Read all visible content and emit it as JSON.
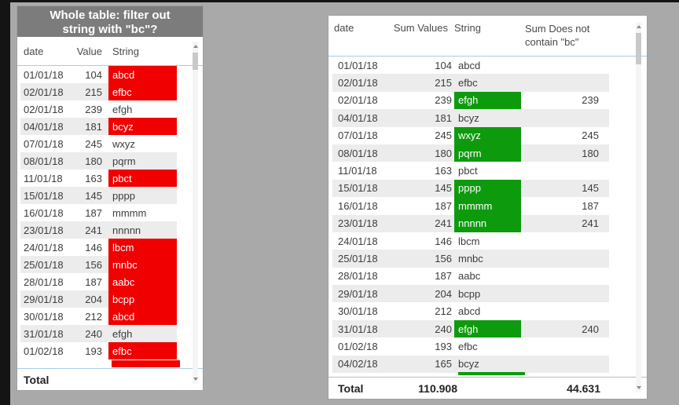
{
  "colors": {
    "page_bg": "#a9a9a9",
    "title_bg": "#7c7c7c",
    "highlight_red": "#f00000",
    "highlight_green": "#0d9b0d",
    "alt_row": "#ececec",
    "header_underline": "#a5cdec"
  },
  "left_table": {
    "title_line1": "Whole table: filter out",
    "title_line2": "string with \"bc\"?",
    "columns": {
      "date": "date",
      "value": "Value",
      "string": "String"
    },
    "rows": [
      {
        "date": "01/01/18",
        "value": "104",
        "string": "abcd",
        "highlight": true
      },
      {
        "date": "02/01/18",
        "value": "215",
        "string": "efbc",
        "highlight": true
      },
      {
        "date": "02/01/18",
        "value": "239",
        "string": "efgh",
        "highlight": false
      },
      {
        "date": "04/01/18",
        "value": "181",
        "string": "bcyz",
        "highlight": true
      },
      {
        "date": "07/01/18",
        "value": "245",
        "string": "wxyz",
        "highlight": false
      },
      {
        "date": "08/01/18",
        "value": "180",
        "string": "pqrm",
        "highlight": false
      },
      {
        "date": "11/01/18",
        "value": "163",
        "string": "pbct",
        "highlight": true
      },
      {
        "date": "15/01/18",
        "value": "145",
        "string": "pppp",
        "highlight": false
      },
      {
        "date": "16/01/18",
        "value": "187",
        "string": "mmmm",
        "highlight": false
      },
      {
        "date": "23/01/18",
        "value": "241",
        "string": "nnnnn",
        "highlight": false
      },
      {
        "date": "24/01/18",
        "value": "146",
        "string": "lbcm",
        "highlight": true
      },
      {
        "date": "25/01/18",
        "value": "156",
        "string": "mnbc",
        "highlight": true
      },
      {
        "date": "28/01/18",
        "value": "187",
        "string": "aabc",
        "highlight": true
      },
      {
        "date": "29/01/18",
        "value": "204",
        "string": "bcpp",
        "highlight": true
      },
      {
        "date": "30/01/18",
        "value": "212",
        "string": "abcd",
        "highlight": true
      },
      {
        "date": "31/01/18",
        "value": "240",
        "string": "efgh",
        "highlight": false
      },
      {
        "date": "01/02/18",
        "value": "193",
        "string": "efbc",
        "highlight": true
      }
    ],
    "total_label": "Total"
  },
  "right_table": {
    "columns": {
      "date": "date",
      "sum_values": "Sum Values",
      "string": "String",
      "sum_not_bc": "Sum Does not contain \"bc\""
    },
    "rows": [
      {
        "date": "01/01/18",
        "sum_values": "104",
        "string": "abcd",
        "highlight": false,
        "sum_not_bc": ""
      },
      {
        "date": "02/01/18",
        "sum_values": "215",
        "string": "efbc",
        "highlight": false,
        "sum_not_bc": ""
      },
      {
        "date": "02/01/18",
        "sum_values": "239",
        "string": "efgh",
        "highlight": true,
        "sum_not_bc": "239"
      },
      {
        "date": "04/01/18",
        "sum_values": "181",
        "string": "bcyz",
        "highlight": false,
        "sum_not_bc": ""
      },
      {
        "date": "07/01/18",
        "sum_values": "245",
        "string": "wxyz",
        "highlight": true,
        "sum_not_bc": "245"
      },
      {
        "date": "08/01/18",
        "sum_values": "180",
        "string": "pqrm",
        "highlight": true,
        "sum_not_bc": "180"
      },
      {
        "date": "11/01/18",
        "sum_values": "163",
        "string": "pbct",
        "highlight": false,
        "sum_not_bc": ""
      },
      {
        "date": "15/01/18",
        "sum_values": "145",
        "string": "pppp",
        "highlight": true,
        "sum_not_bc": "145"
      },
      {
        "date": "16/01/18",
        "sum_values": "187",
        "string": "mmmm",
        "highlight": true,
        "sum_not_bc": "187"
      },
      {
        "date": "23/01/18",
        "sum_values": "241",
        "string": "nnnnn",
        "highlight": true,
        "sum_not_bc": "241"
      },
      {
        "date": "24/01/18",
        "sum_values": "146",
        "string": "lbcm",
        "highlight": false,
        "sum_not_bc": ""
      },
      {
        "date": "25/01/18",
        "sum_values": "156",
        "string": "mnbc",
        "highlight": false,
        "sum_not_bc": ""
      },
      {
        "date": "28/01/18",
        "sum_values": "187",
        "string": "aabc",
        "highlight": false,
        "sum_not_bc": ""
      },
      {
        "date": "29/01/18",
        "sum_values": "204",
        "string": "bcpp",
        "highlight": false,
        "sum_not_bc": ""
      },
      {
        "date": "30/01/18",
        "sum_values": "212",
        "string": "abcd",
        "highlight": false,
        "sum_not_bc": ""
      },
      {
        "date": "31/01/18",
        "sum_values": "240",
        "string": "efgh",
        "highlight": true,
        "sum_not_bc": "240"
      },
      {
        "date": "01/02/18",
        "sum_values": "193",
        "string": "efbc",
        "highlight": false,
        "sum_not_bc": ""
      },
      {
        "date": "04/02/18",
        "sum_values": "165",
        "string": "bcyz",
        "highlight": false,
        "sum_not_bc": ""
      }
    ],
    "total_label": "Total",
    "total_sum_values": "110.908",
    "total_sum_not_bc": "44.631"
  }
}
